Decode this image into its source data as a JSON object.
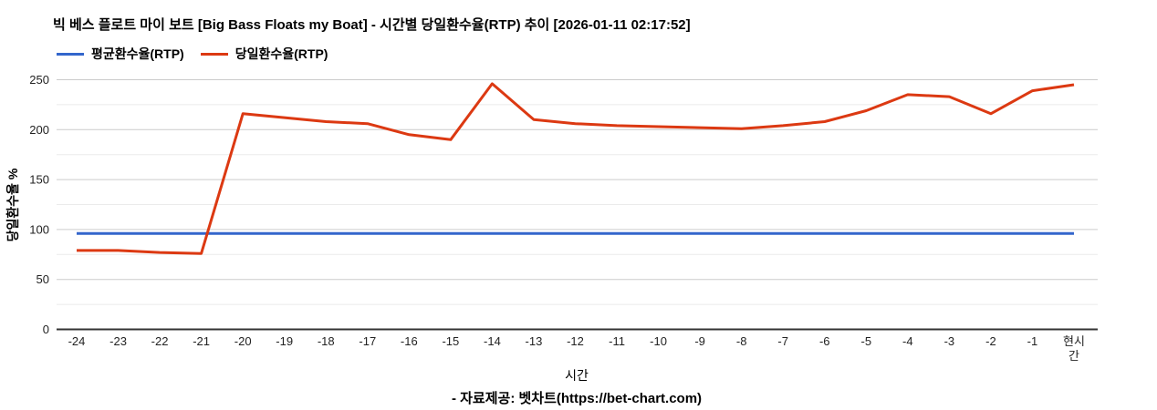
{
  "title": "빅 베스 플로트 마이 보트 [Big Bass Floats my Boat] - 시간별 당일환수율(RTP) 추이 [2026-01-11 02:17:52]",
  "legend": [
    {
      "label": "평균환수율(RTP)",
      "color": "#3366cc"
    },
    {
      "label": "당일환수율(RTP)",
      "color": "#dc3912"
    }
  ],
  "footer": "- 자료제공: 벳차트(https://bet-chart.com)",
  "colors": {
    "average_line": "#3366cc",
    "daily_line": "#dc3912",
    "major_gridline": "#cccccc",
    "minor_gridline": "#ebebeb",
    "axis_line": "#333333",
    "tick_text": "#222222"
  },
  "chart_data": {
    "type": "line",
    "title": "빅 베스 플로트 마이 보트 [Big Bass Floats my Boat] - 시간별 당일환수율(RTP) 추이 [2026-01-11 02:17:52]",
    "xlabel": "시간",
    "ylabel": "당일환수율 %",
    "ylim": [
      0,
      250
    ],
    "grid": "horizontal-only",
    "legend_position": "top",
    "y_major_ticks": [
      0,
      50,
      100,
      150,
      200,
      250
    ],
    "y_minor_gridlines": [
      25,
      75,
      125,
      175,
      225
    ],
    "categories": [
      "-24",
      "-23",
      "-22",
      "-21",
      "-20",
      "-19",
      "-18",
      "-17",
      "-16",
      "-15",
      "-14",
      "-13",
      "-12",
      "-11",
      "-10",
      "-9",
      "-8",
      "-7",
      "-6",
      "-5",
      "-4",
      "-3",
      "-2",
      "-1",
      "현시간"
    ],
    "series": [
      {
        "name": "평균환수율(RTP)",
        "color": "#3366cc",
        "values": [
          96,
          96,
          96,
          96,
          96,
          96,
          96,
          96,
          96,
          96,
          96,
          96,
          96,
          96,
          96,
          96,
          96,
          96,
          96,
          96,
          96,
          96,
          96,
          96,
          96
        ]
      },
      {
        "name": "당일환수율(RTP)",
        "color": "#dc3912",
        "values": [
          79,
          79,
          77,
          76,
          216,
          212,
          208,
          206,
          195,
          190,
          246,
          210,
          206,
          204,
          203,
          202,
          201,
          204,
          208,
          219,
          235,
          233,
          216,
          239,
          245
        ]
      }
    ]
  }
}
